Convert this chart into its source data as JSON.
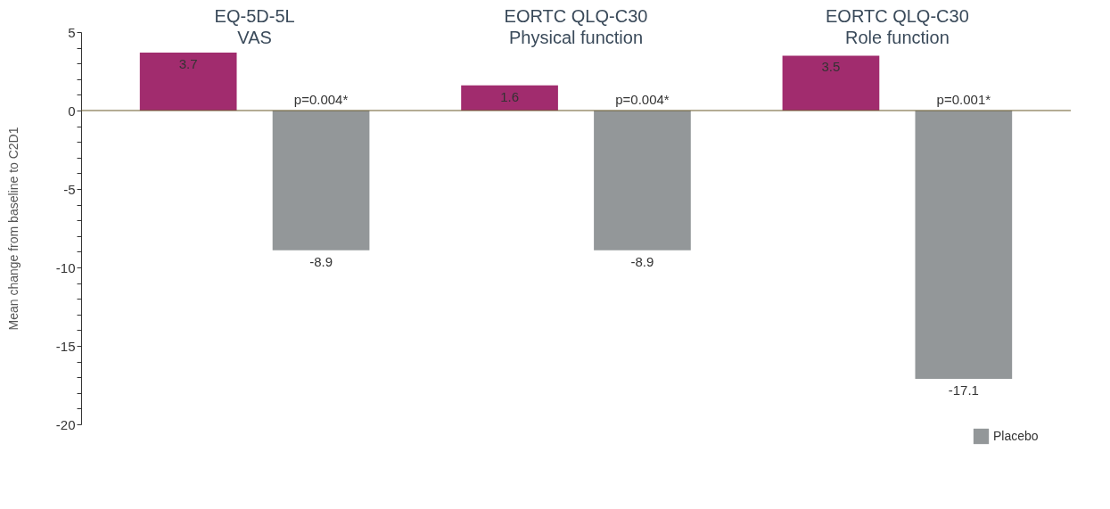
{
  "chart_data": {
    "type": "bar",
    "categories": [
      "EQ-5D-5L\nVAS",
      "EORTC QLQ-C30\nPhysical function",
      "EORTC QLQ-C30\nRole function"
    ],
    "ylabel": "Mean change from baseline to C2D1",
    "series": [
      {
        "color": "#a12c6e",
        "values": [
          3.7,
          1.6,
          3.5
        ]
      },
      {
        "name": "Placebo",
        "color": "#939799",
        "values": [
          -8.9,
          -8.9,
          -17.1
        ]
      }
    ],
    "data_labels": true,
    "annotations": [
      "p=0.004*",
      "p=0.004*",
      "p=0.001*"
    ],
    "ylim": [
      -20,
      5
    ],
    "yticks": [
      -20,
      {
        "value": -19,
        "label": null
      },
      {
        "value": -18,
        "label": null
      },
      {
        "value": -17,
        "label": null
      },
      {
        "value": -16,
        "label": null
      },
      -15,
      {
        "value": -14,
        "label": null
      },
      {
        "value": -13,
        "label": null
      },
      {
        "value": -12,
        "label": null
      },
      {
        "value": -11,
        "label": null
      },
      -10,
      {
        "value": -9,
        "label": null
      },
      {
        "value": -8,
        "label": null
      },
      {
        "value": -7,
        "label": null
      },
      {
        "value": -6,
        "label": null
      },
      -5,
      {
        "value": -4,
        "label": null
      },
      {
        "value": -3,
        "label": null
      },
      {
        "value": -2,
        "label": null
      },
      {
        "value": -1,
        "label": null
      },
      0,
      {
        "value": 1,
        "label": null
      },
      {
        "value": 2,
        "label": null
      },
      {
        "value": 3,
        "label": null
      },
      {
        "value": 4,
        "label": null
      },
      5
    ],
    "ref_lines": [
      {
        "axis": "y",
        "value": 0,
        "color": "#6b5a2a"
      }
    ],
    "grid": false,
    "legend": "bottom right"
  }
}
